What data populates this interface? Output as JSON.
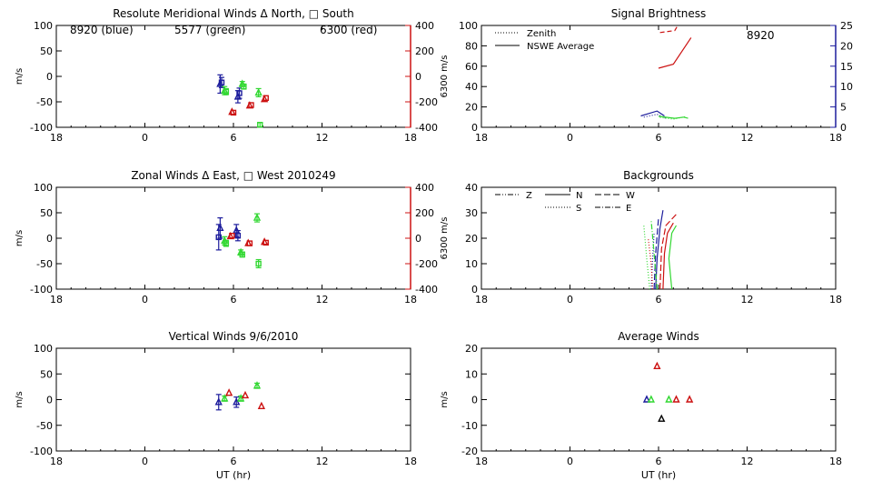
{
  "colors": {
    "blue": "#1c1c9c",
    "green": "#33d833",
    "red": "#cc1111",
    "black": "#000000"
  },
  "chart_data": [
    {
      "id": "meridional",
      "type": "scatter",
      "title": "Resolute Meridional Winds Δ North, □ South",
      "xlabel": "",
      "ylabel": "m/s",
      "ylabel_right": "6300 m/s",
      "xlim": [
        18,
        42
      ],
      "x_tick_labels": [
        "18",
        "0",
        "6",
        "12",
        "18"
      ],
      "ylim": [
        -100,
        100
      ],
      "y_tick_labels": [
        "100",
        "50",
        "0",
        "-50",
        "-100"
      ],
      "ylim_right": [
        -400,
        400
      ],
      "y_right_tick_labels": [
        "400",
        "200",
        "0",
        "-200",
        "-400"
      ],
      "annotations": [
        {
          "text": "8920  (blue)",
          "color": "blue"
        },
        {
          "text": "5577  (green)",
          "color": "green"
        },
        {
          "text": "6300  (red)",
          "color": "red"
        }
      ],
      "series": [
        {
          "color": "blue",
          "marker": "triangle",
          "points": [
            {
              "x": 29.1,
              "y": -15,
              "err": 18
            },
            {
              "x": 30.3,
              "y": -40,
              "err": 12
            }
          ]
        },
        {
          "color": "blue",
          "marker": "square",
          "points": [
            {
              "x": 29.2,
              "y": -12,
              "err": 10
            },
            {
              "x": 30.4,
              "y": -33,
              "err": 10
            }
          ]
        },
        {
          "color": "green",
          "marker": "triangle",
          "points": [
            {
              "x": 29.4,
              "y": -28,
              "err": 8
            },
            {
              "x": 30.6,
              "y": -15,
              "err": 5
            },
            {
              "x": 31.7,
              "y": -32,
              "err": 8
            }
          ]
        },
        {
          "color": "green",
          "marker": "square",
          "points": [
            {
              "x": 29.5,
              "y": -30,
              "err": 6
            },
            {
              "x": 30.7,
              "y": -20,
              "err": 5
            },
            {
              "x": 31.8,
              "y": -95,
              "err": 4
            }
          ]
        },
        {
          "color": "red",
          "marker": "triangle",
          "axis": "right",
          "points": [
            {
              "x": 29.9,
              "y": -280
            },
            {
              "x": 31.1,
              "y": -230
            },
            {
              "x": 32.1,
              "y": -180
            }
          ]
        },
        {
          "color": "red",
          "marker": "square",
          "axis": "right",
          "points": [
            {
              "x": 30.0,
              "y": -285
            },
            {
              "x": 31.2,
              "y": -225
            },
            {
              "x": 32.2,
              "y": -170
            }
          ]
        }
      ]
    },
    {
      "id": "brightness",
      "type": "line",
      "title": "Signal Brightness",
      "xlim": [
        18,
        42
      ],
      "x_tick_labels": [
        "18",
        "0",
        "6",
        "12",
        "18"
      ],
      "ylim": [
        0,
        100
      ],
      "y_tick_labels": [
        "100",
        "80",
        "60",
        "40",
        "20",
        "0"
      ],
      "ylim_right": [
        0,
        25
      ],
      "y_right_tick_labels": [
        "25",
        "20",
        "15",
        "10",
        "5",
        "0"
      ],
      "annotation": {
        "text": "8920",
        "color": "blue"
      },
      "legend": {
        "position": "top-left",
        "entries": [
          {
            "label": "Zenith",
            "style": "dotted"
          },
          {
            "label": "NSWE Average",
            "style": "solid"
          }
        ]
      },
      "series": [
        {
          "color": "red",
          "style": "dashed",
          "points": [
            [
              30.1,
              93
            ],
            [
              31.1,
              95
            ],
            [
              31.3,
              100
            ]
          ]
        },
        {
          "color": "red",
          "style": "solid",
          "points": [
            [
              30.0,
              58
            ],
            [
              31.0,
              62
            ],
            [
              32.2,
              88
            ]
          ]
        },
        {
          "color": "blue",
          "style": "solid",
          "axis": "right",
          "points": [
            [
              28.8,
              2.8
            ],
            [
              29.9,
              4.0
            ],
            [
              30.4,
              2.8
            ]
          ]
        },
        {
          "color": "blue",
          "style": "dotted",
          "axis": "right",
          "points": [
            [
              29.0,
              2.5
            ],
            [
              29.9,
              3.2
            ],
            [
              30.5,
              2.2
            ]
          ]
        },
        {
          "color": "green",
          "style": "solid",
          "axis": "right",
          "points": [
            [
              30.0,
              2.7
            ],
            [
              31.1,
              2.2
            ],
            [
              31.7,
              2.5
            ],
            [
              32.0,
              2.2
            ]
          ]
        },
        {
          "color": "green",
          "style": "dotted",
          "axis": "right",
          "points": [
            [
              30.1,
              2.4
            ],
            [
              31.0,
              2.0
            ],
            [
              31.8,
              2.6
            ]
          ]
        }
      ]
    },
    {
      "id": "zonal",
      "type": "scatter",
      "title": "Zonal Winds Δ East, □ West 2010249",
      "ylabel": "m/s",
      "ylabel_right": "6300 m/s",
      "xlim": [
        18,
        42
      ],
      "x_tick_labels": [
        "18",
        "0",
        "6",
        "12",
        "18"
      ],
      "ylim": [
        -100,
        100
      ],
      "y_tick_labels": [
        "100",
        "50",
        "0",
        "-50",
        "-100"
      ],
      "ylim_right": [
        -400,
        400
      ],
      "y_right_tick_labels": [
        "400",
        "200",
        "0",
        "-200",
        "-400"
      ],
      "series": [
        {
          "color": "blue",
          "marker": "triangle",
          "points": [
            {
              "x": 29.1,
              "y": 20,
              "err": 20
            },
            {
              "x": 30.2,
              "y": 15,
              "err": 12
            }
          ]
        },
        {
          "color": "blue",
          "marker": "square",
          "points": [
            {
              "x": 29.0,
              "y": 2,
              "err": 25
            },
            {
              "x": 30.3,
              "y": 5,
              "err": 10
            }
          ]
        },
        {
          "color": "green",
          "marker": "triangle",
          "points": [
            {
              "x": 29.4,
              "y": -5,
              "err": 8
            },
            {
              "x": 30.5,
              "y": -28,
              "err": 5
            },
            {
              "x": 31.6,
              "y": 40,
              "err": 8
            }
          ]
        },
        {
          "color": "green",
          "marker": "square",
          "points": [
            {
              "x": 29.5,
              "y": -10,
              "err": 6
            },
            {
              "x": 30.6,
              "y": -32,
              "err": 5
            },
            {
              "x": 31.7,
              "y": -50,
              "err": 8
            }
          ]
        },
        {
          "color": "red",
          "marker": "triangle",
          "axis": "right",
          "points": [
            {
              "x": 29.8,
              "y": 15
            },
            {
              "x": 31.0,
              "y": -40
            },
            {
              "x": 32.1,
              "y": -30
            }
          ]
        },
        {
          "color": "red",
          "marker": "square",
          "axis": "right",
          "points": [
            {
              "x": 29.9,
              "y": 20
            },
            {
              "x": 31.1,
              "y": -40
            },
            {
              "x": 32.2,
              "y": -35
            }
          ]
        }
      ]
    },
    {
      "id": "backgrounds",
      "type": "line",
      "title": "Backgrounds",
      "xlim": [
        18,
        42
      ],
      "x_tick_labels": [
        "18",
        "0",
        "6",
        "12",
        "18"
      ],
      "ylim": [
        0,
        40
      ],
      "y_tick_labels": [
        "40",
        "30",
        "20",
        "10",
        "0"
      ],
      "legend": {
        "position": "top-left",
        "entries": [
          {
            "label": "Z",
            "style": "dash-dot-dot"
          },
          {
            "label": "N",
            "style": "solid"
          },
          {
            "label": "W",
            "style": "long-dash"
          },
          {
            "label": "S",
            "style": "dotted"
          },
          {
            "label": "E",
            "style": "dash-dot"
          }
        ]
      },
      "series": [
        {
          "color": "blue",
          "style": "solid",
          "points": [
            [
              29.8,
              0
            ],
            [
              29.9,
              12
            ],
            [
              30.1,
              24
            ],
            [
              30.3,
              31
            ]
          ]
        },
        {
          "color": "blue",
          "style": "dotted",
          "points": [
            [
              29.5,
              0
            ],
            [
              29.6,
              12
            ],
            [
              29.7,
              22
            ]
          ]
        },
        {
          "color": "blue",
          "style": "long-dash",
          "points": [
            [
              29.7,
              0
            ],
            [
              29.8,
              14
            ],
            [
              30.0,
              28
            ]
          ]
        },
        {
          "color": "green",
          "style": "solid",
          "points": [
            [
              30.9,
              0
            ],
            [
              30.7,
              12
            ],
            [
              30.9,
              22
            ],
            [
              31.2,
              25
            ]
          ]
        },
        {
          "color": "green",
          "style": "dotted",
          "points": [
            [
              29.4,
              0
            ],
            [
              29.2,
              12
            ],
            [
              29.0,
              25
            ]
          ]
        },
        {
          "color": "green",
          "style": "dash-dot",
          "points": [
            [
              29.9,
              0
            ],
            [
              29.7,
              14
            ],
            [
              29.5,
              27
            ]
          ]
        },
        {
          "color": "red",
          "style": "solid",
          "points": [
            [
              30.3,
              0
            ],
            [
              30.4,
              14
            ],
            [
              30.6,
              22
            ],
            [
              31.0,
              26
            ]
          ]
        },
        {
          "color": "red",
          "style": "long-dash",
          "points": [
            [
              30.1,
              0
            ],
            [
              30.2,
              16
            ],
            [
              30.5,
              25
            ],
            [
              31.3,
              30
            ]
          ]
        },
        {
          "color": "red",
          "style": "dotted",
          "points": [
            [
              29.6,
              0
            ],
            [
              29.5,
              10
            ],
            [
              29.3,
              20
            ]
          ]
        }
      ]
    },
    {
      "id": "vertical",
      "type": "scatter",
      "title": "Vertical Winds 9/6/2010",
      "xlabel": "UT (hr)",
      "ylabel": "m/s",
      "xlim": [
        18,
        42
      ],
      "x_tick_labels": [
        "18",
        "0",
        "6",
        "12",
        "18"
      ],
      "ylim": [
        -100,
        100
      ],
      "y_tick_labels": [
        "100",
        "50",
        "0",
        "-50",
        "-100"
      ],
      "series": [
        {
          "color": "blue",
          "marker": "triangle",
          "points": [
            {
              "x": 29.0,
              "y": -5,
              "err": 15
            },
            {
              "x": 30.2,
              "y": -5,
              "err": 10
            }
          ]
        },
        {
          "color": "green",
          "marker": "triangle",
          "points": [
            {
              "x": 29.4,
              "y": 2,
              "err": 5
            },
            {
              "x": 30.5,
              "y": 2,
              "err": 5
            },
            {
              "x": 31.6,
              "y": 27,
              "err": 5
            }
          ]
        },
        {
          "color": "red",
          "marker": "triangle",
          "points": [
            {
              "x": 29.7,
              "y": 13
            },
            {
              "x": 30.8,
              "y": 8
            },
            {
              "x": 31.9,
              "y": -13
            }
          ]
        }
      ]
    },
    {
      "id": "average",
      "type": "scatter",
      "title": "Average Winds",
      "xlabel": "UT (hr)",
      "ylabel": "m/s",
      "xlim": [
        18,
        42
      ],
      "x_tick_labels": [
        "18",
        "0",
        "6",
        "12",
        "18"
      ],
      "ylim": [
        -20,
        20
      ],
      "y_tick_labels": [
        "20",
        "10",
        "0",
        "-10",
        "-20"
      ],
      "series": [
        {
          "color": "blue",
          "marker": "triangle",
          "points": [
            {
              "x": 29.2,
              "y": 0
            }
          ]
        },
        {
          "color": "green",
          "marker": "triangle",
          "points": [
            {
              "x": 29.5,
              "y": 0
            },
            {
              "x": 30.7,
              "y": 0
            }
          ]
        },
        {
          "color": "red",
          "marker": "triangle",
          "points": [
            {
              "x": 29.9,
              "y": 13
            },
            {
              "x": 31.2,
              "y": 0
            },
            {
              "x": 32.1,
              "y": 0
            }
          ]
        },
        {
          "color": "black",
          "marker": "triangle",
          "points": [
            {
              "x": 30.2,
              "y": -7.5
            }
          ]
        }
      ]
    }
  ]
}
